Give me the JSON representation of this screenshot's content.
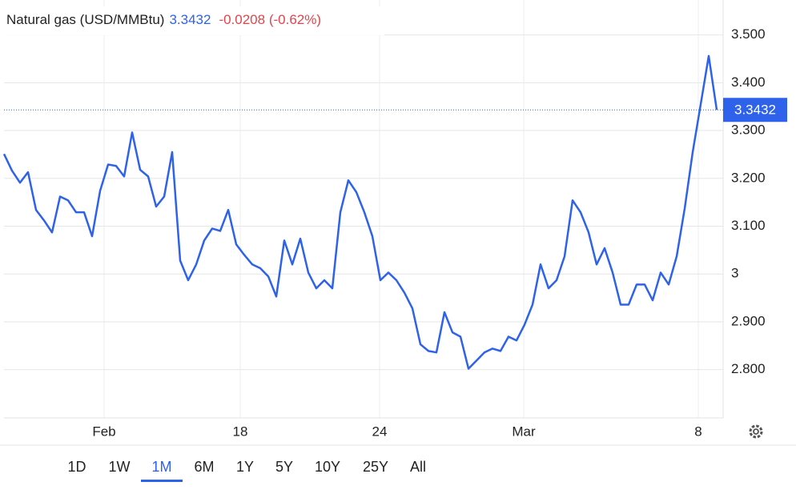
{
  "chart_data": {
    "type": "line",
    "title": "Natural gas (USD/MMBtu)",
    "price": 3.3432,
    "change": "-0.0208 (-0.62%)",
    "values": [
      3.251,
      3.216,
      3.191,
      3.213,
      3.134,
      3.112,
      3.087,
      3.162,
      3.154,
      3.129,
      3.129,
      3.079,
      3.174,
      3.229,
      3.226,
      3.204,
      3.296,
      3.218,
      3.204,
      3.141,
      3.162,
      3.255,
      3.028,
      2.987,
      3.02,
      3.07,
      3.095,
      3.09,
      3.134,
      3.062,
      3.04,
      3.02,
      3.012,
      2.995,
      2.953,
      3.07,
      3.02,
      3.074,
      3.003,
      2.97,
      2.987,
      2.97,
      3.129,
      3.196,
      3.171,
      3.129,
      3.079,
      2.987,
      3.003,
      2.987,
      2.961,
      2.928,
      2.853,
      2.839,
      2.836,
      2.92,
      2.878,
      2.869,
      2.802,
      2.819,
      2.836,
      2.844,
      2.839,
      2.869,
      2.861,
      2.894,
      2.936,
      3.02,
      2.97,
      2.987,
      3.037,
      3.154,
      3.129,
      3.087,
      3.02,
      3.054,
      3.003,
      2.936,
      2.936,
      2.978,
      2.978,
      2.945,
      3.003,
      2.978,
      3.037,
      3.137,
      3.255,
      3.355,
      3.456,
      3.3432
    ],
    "color": "#2e62eb",
    "xlim": [
      0,
      89.8
    ],
    "xticks": [
      {
        "value": 12.5,
        "label": "Feb"
      },
      {
        "value": 29.5,
        "label": "18"
      },
      {
        "value": 46.9,
        "label": "24"
      },
      {
        "value": 64.9,
        "label": "Mar"
      },
      {
        "value": 86.7,
        "label": "8"
      }
    ],
    "ylim": [
      2.699,
      3.573
    ],
    "yticks": [
      {
        "value": 2.8,
        "label": "2.800"
      },
      {
        "value": 2.9,
        "label": "2.900"
      },
      3,
      {
        "value": 3.1,
        "label": "3.100"
      },
      {
        "value": 3.2,
        "label": "3.200"
      },
      {
        "value": 3.3,
        "label": "3.300"
      },
      {
        "value": 3.4,
        "label": "3.400"
      },
      {
        "value": 3.5,
        "label": "3.500"
      }
    ],
    "grid": true
  },
  "range_buttons": [
    "1D",
    "1W",
    "1M",
    "6M",
    "1Y",
    "5Y",
    "10Y",
    "25Y",
    "All"
  ],
  "selected_range": 2
}
